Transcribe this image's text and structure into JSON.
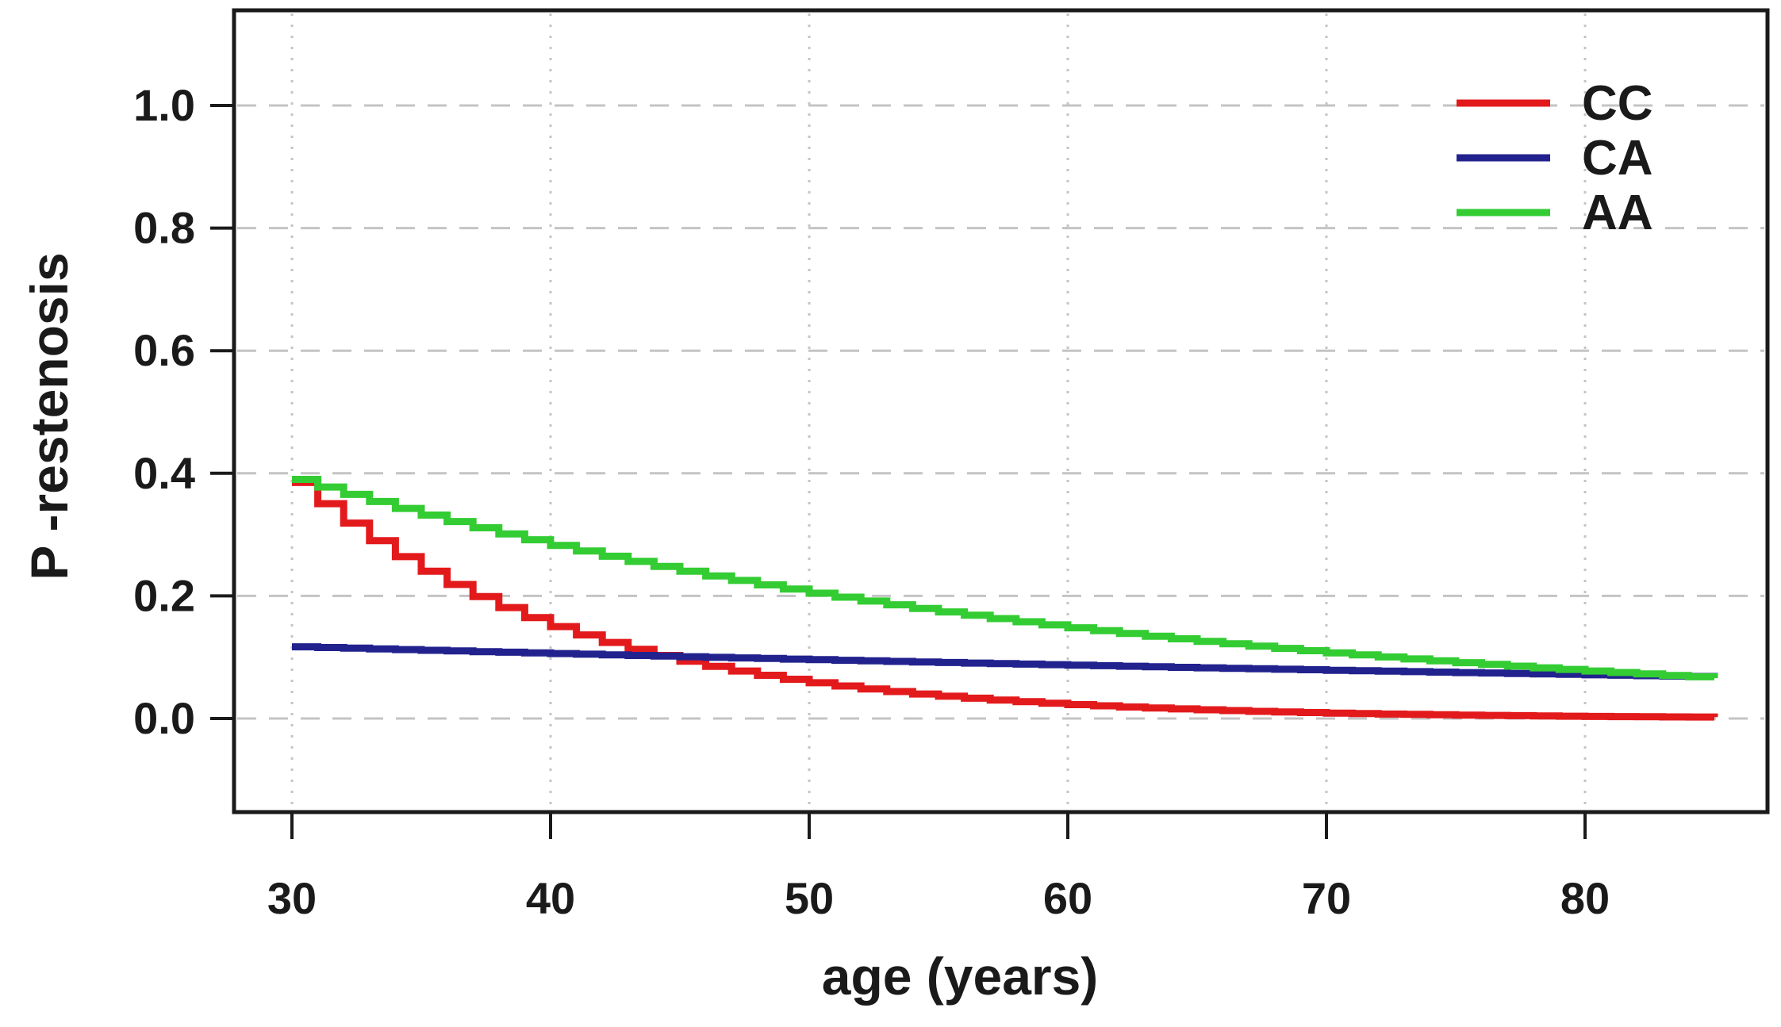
{
  "chart_data": {
    "type": "line",
    "title": "",
    "xlabel": "age (years)",
    "ylabel": "P -restenosis",
    "xlim": [
      27.8,
      87.0
    ],
    "ylim": [
      -0.153,
      1.155
    ],
    "xticks": [
      30,
      40,
      50,
      60,
      70,
      80
    ],
    "yticks": [
      0.0,
      0.2,
      0.4,
      0.6,
      0.8,
      1.0
    ],
    "ytick_labels": [
      "0.0",
      "0.2",
      "0.4",
      "0.6",
      "0.8",
      "1.0"
    ],
    "xtick_labels": [
      "30",
      "40",
      "50",
      "60",
      "70",
      "80"
    ],
    "grid": {
      "horizontal": "dashed",
      "vertical": "dotted",
      "color": "#c4c4c4",
      "on": true
    },
    "legend_position": "top-right",
    "line_style": "steps-after",
    "ages": [
      30,
      31,
      32,
      33,
      34,
      35,
      36,
      37,
      38,
      39,
      40,
      41,
      42,
      43,
      44,
      45,
      46,
      47,
      48,
      49,
      50,
      51,
      52,
      53,
      54,
      55,
      56,
      57,
      58,
      59,
      60,
      61,
      62,
      63,
      64,
      65,
      66,
      67,
      68,
      69,
      70,
      71,
      72,
      73,
      74,
      75,
      76,
      77,
      78,
      79,
      80,
      81,
      82,
      83,
      84,
      85
    ],
    "series": [
      {
        "name": "CC",
        "color": "#e31a1c",
        "values": [
          0.385,
          0.3504,
          0.3188,
          0.2901,
          0.264,
          0.2402,
          0.2186,
          0.1989,
          0.181,
          0.1647,
          0.1499,
          0.1364,
          0.1241,
          0.113,
          0.1028,
          0.0935,
          0.0851,
          0.0775,
          0.0705,
          0.0641,
          0.0584,
          0.0531,
          0.0483,
          0.044,
          0.04,
          0.0364,
          0.0331,
          0.0302,
          0.0274,
          0.025,
          0.0227,
          0.0207,
          0.0188,
          0.0171,
          0.0156,
          0.0142,
          0.0129,
          0.0117,
          0.0107,
          0.0097,
          0.0088,
          0.008,
          0.0073,
          0.0067,
          0.0061,
          0.0055,
          0.005,
          0.0046,
          0.0042,
          0.0038,
          0.0034,
          0.0031,
          0.0029,
          0.0026,
          0.0024,
          0.0022
        ]
      },
      {
        "name": "CA",
        "color": "#22228e",
        "values": [
          0.117,
          0.1158,
          0.1147,
          0.1136,
          0.1124,
          0.1113,
          0.1102,
          0.1091,
          0.1081,
          0.107,
          0.106,
          0.1049,
          0.1039,
          0.1029,
          0.1018,
          0.1008,
          0.0998,
          0.0989,
          0.0979,
          0.0969,
          0.096,
          0.095,
          0.0941,
          0.0932,
          0.0922,
          0.0913,
          0.0904,
          0.0895,
          0.0887,
          0.0878,
          0.0869,
          0.0861,
          0.0852,
          0.0844,
          0.0835,
          0.0827,
          0.0819,
          0.0811,
          0.0803,
          0.0795,
          0.0787,
          0.0779,
          0.0772,
          0.0764,
          0.0757,
          0.0749,
          0.0742,
          0.0734,
          0.0727,
          0.072,
          0.0713,
          0.0706,
          0.0699,
          0.0692,
          0.0685,
          0.0678
        ]
      },
      {
        "name": "AA",
        "color": "#33cc33",
        "values": [
          0.39,
          0.3776,
          0.3656,
          0.354,
          0.3427,
          0.3318,
          0.3213,
          0.3111,
          0.3012,
          0.2916,
          0.2823,
          0.2734,
          0.2647,
          0.2563,
          0.2481,
          0.2402,
          0.2326,
          0.2252,
          0.218,
          0.2111,
          0.2044,
          0.1979,
          0.1916,
          0.1855,
          0.1796,
          0.1739,
          0.1684,
          0.163,
          0.1578,
          0.1528,
          0.148,
          0.1433,
          0.1387,
          0.1343,
          0.13,
          0.1259,
          0.1219,
          0.118,
          0.1143,
          0.1106,
          0.1071,
          0.1037,
          0.1004,
          0.0972,
          0.0941,
          0.0911,
          0.0882,
          0.0854,
          0.0827,
          0.0801,
          0.0775,
          0.075,
          0.0727,
          0.0703,
          0.0681,
          0.0659
        ]
      }
    ]
  },
  "style": {
    "axis_color": "#1a1a1a",
    "text_color": "#1a1a1a",
    "background": "#ffffff"
  }
}
